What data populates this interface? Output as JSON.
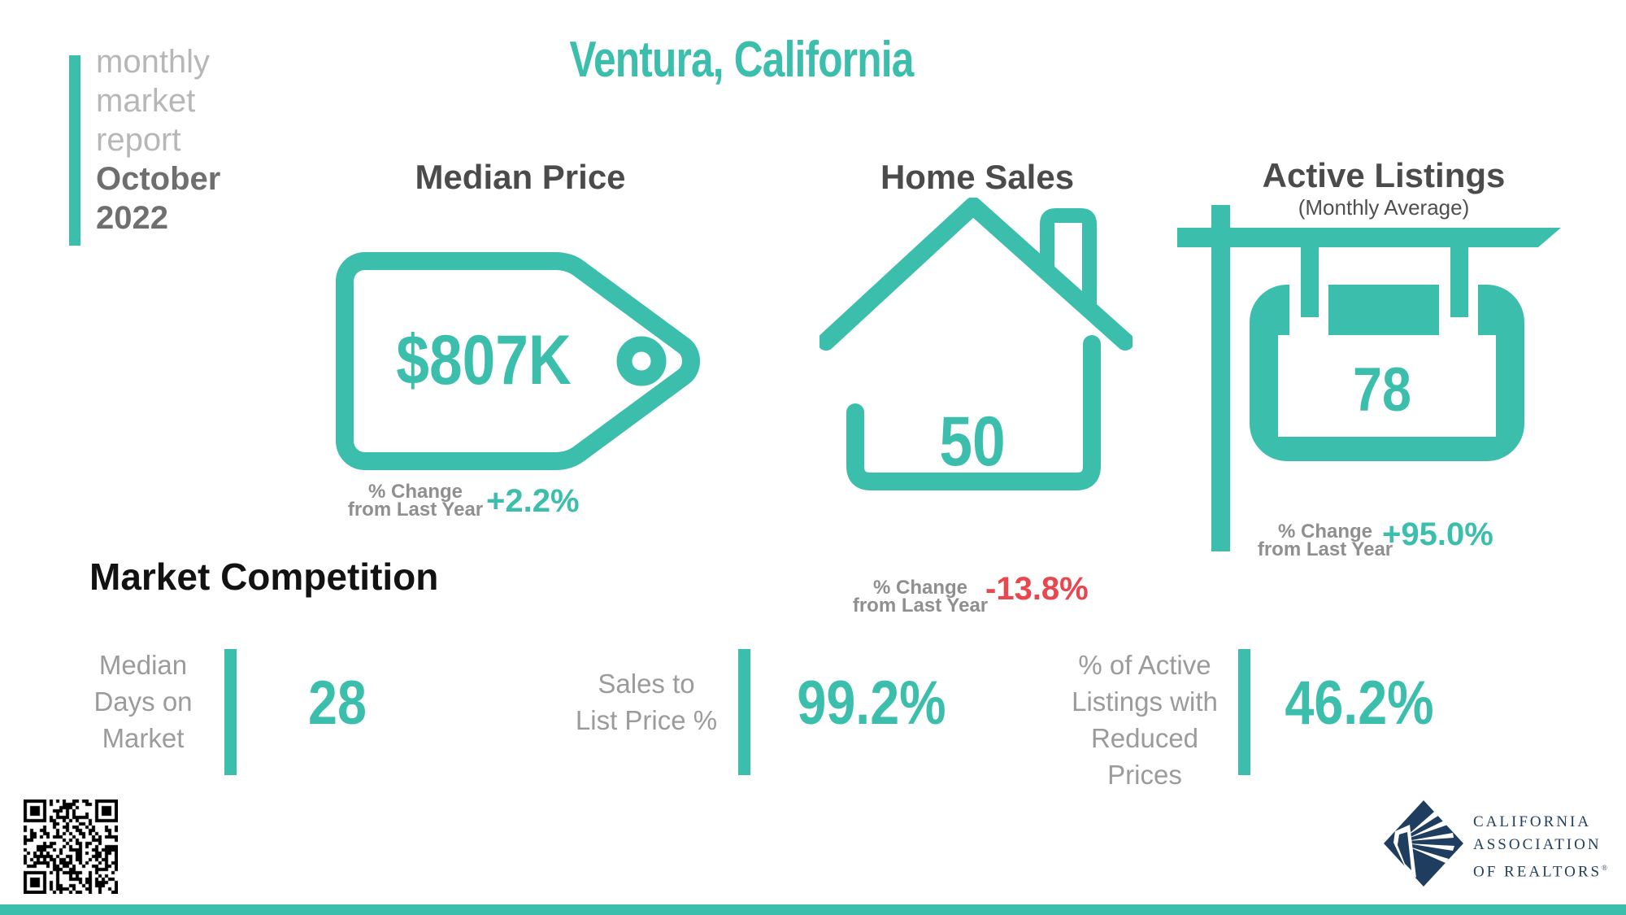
{
  "theme": {
    "teal": "#3BBFAC",
    "red": "#E9464D",
    "navy": "#1E3D5F",
    "heading_gray": "#4B4B4B",
    "label_gray": "#9B9B9B",
    "caption_gray": "#8F8F8F",
    "badge_light_gray": "#B7B7B7",
    "badge_dark_gray": "#6F6F6F"
  },
  "report_badge": {
    "line1": "monthly",
    "line2": "market",
    "line3": "report",
    "line4": "October",
    "line5": "2022"
  },
  "title": "Ventura, California",
  "median_price": {
    "heading": "Median Price",
    "value": "$807K",
    "change_line1": "% Change",
    "change_line2": "from Last Year",
    "change_value": "+2.2%",
    "icon": "price-tag-icon"
  },
  "home_sales": {
    "heading": "Home Sales",
    "value": "50",
    "change_line1": "% Change",
    "change_line2": "from Last Year",
    "change_value": "-13.8%",
    "icon": "house-icon"
  },
  "active_listings": {
    "heading": "Active Listings",
    "subheading": "(Monthly Average)",
    "value": "78",
    "change_line1": "% Change",
    "change_line2": "from Last Year",
    "change_value": "+95.0%",
    "icon": "for-sale-sign-icon"
  },
  "market_competition": {
    "heading": "Market Competition",
    "items": [
      {
        "label_line1": "Median",
        "label_line2": "Days on",
        "label_line3": "Market",
        "value": "28"
      },
      {
        "label_line1": "Sales to",
        "label_line2": "List Price %",
        "label_line3": "",
        "value": "99.2%"
      },
      {
        "label_line1": "% of Active",
        "label_line2": "Listings with",
        "label_line3": "Reduced Prices",
        "value": "46.2%"
      }
    ]
  },
  "footer": {
    "qr": "qr-code",
    "logo_icon": "california-association-of-realtors-diamond",
    "logo_line1": "CALIFORNIA",
    "logo_line2": "ASSOCIATION",
    "logo_line3": "OF REALTORS",
    "registered_mark": "®"
  }
}
